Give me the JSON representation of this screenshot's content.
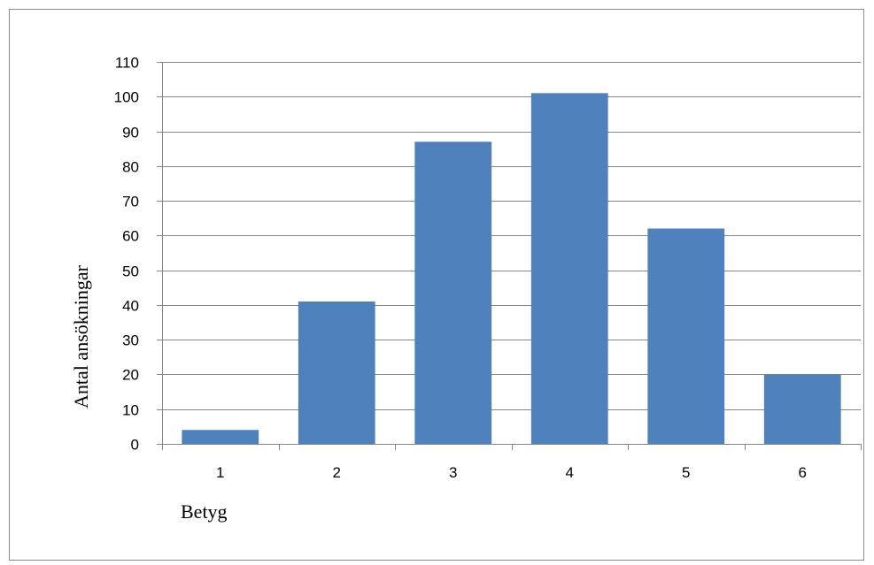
{
  "chart_data": {
    "type": "bar",
    "title": "",
    "xlabel": "Betyg",
    "ylabel": "Antal ansökningar",
    "categories": [
      "1",
      "2",
      "3",
      "4",
      "5",
      "6"
    ],
    "values": [
      4,
      41,
      87,
      101,
      62,
      20
    ],
    "ylim": [
      0,
      110
    ],
    "ytick_step": 10,
    "yticks": [
      "0",
      "10",
      "20",
      "30",
      "40",
      "50",
      "60",
      "70",
      "80",
      "90",
      "100",
      "110"
    ],
    "grid": true,
    "legend": "none",
    "bar_color": "#4f81bd",
    "gridline_color": "#868686",
    "frame_color": "#8c8c8c"
  }
}
